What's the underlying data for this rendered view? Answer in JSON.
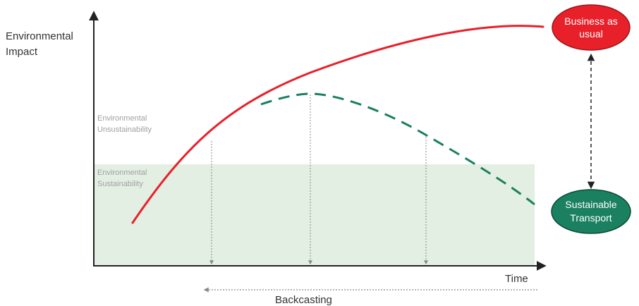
{
  "axes": {
    "y_label_line1": "Environmental",
    "y_label_line2": "Impact",
    "x_label": "Time"
  },
  "zones": {
    "unsustainability_line1": "Environmental",
    "unsustainability_line2": "Unsustainability",
    "sustainability_line1": "Environmental",
    "sustainability_line2": "Sustainability"
  },
  "scenarios": {
    "business_as_usual_line1": "Business as",
    "business_as_usual_line2": "usual",
    "sustainable_transport_line1": "Sustainable",
    "sustainable_transport_line2": "Transport"
  },
  "process": {
    "label": "Backcasting"
  },
  "colors": {
    "business_as_usual": "#e8202a",
    "sustainable_transport": "#1a8060",
    "sustainability_zone": "#e3efe3",
    "axis": "#222222",
    "guide_lines": "#8a8a8a"
  }
}
